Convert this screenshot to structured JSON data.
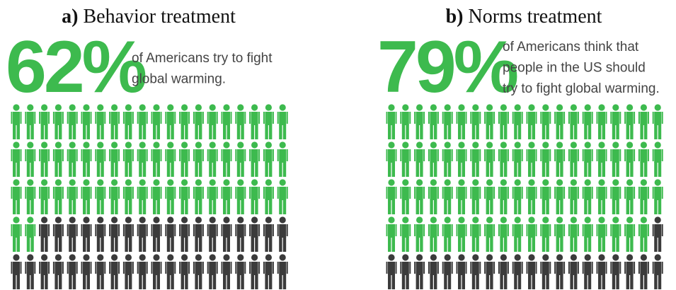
{
  "chart_data": [
    {
      "type": "pictogram",
      "label": "a)",
      "title": "Behavior treatment",
      "values": [
        62
      ],
      "value_labels": [
        "62%"
      ],
      "text_lines": [
        "of Americans try to fight",
        "global warming."
      ],
      "color": "#3dba4e",
      "rest_color": "#3b3b3b"
    },
    {
      "type": "pictogram",
      "label": "b)",
      "title": "Norms treatment",
      "values": [
        79
      ],
      "value_labels": [
        "79%"
      ],
      "text_lines": [
        "of Americans think that",
        "people in the US should",
        "try to fight global warming."
      ],
      "color": "#3dba4e",
      "rest_color": "#3b3b3b"
    }
  ]
}
